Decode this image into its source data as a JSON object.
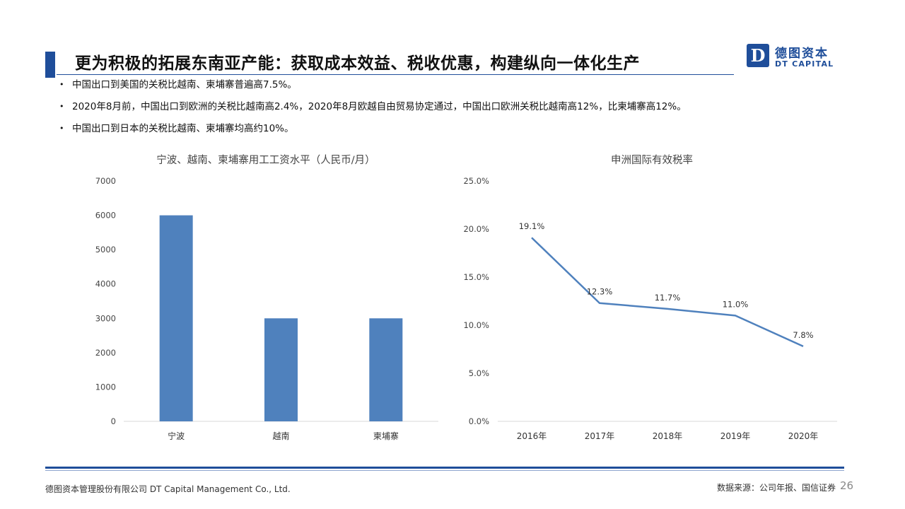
{
  "header": {
    "title": "更为积极的拓展东南亚产能：获取成本效益、税收优惠，构建纵向一体化生产",
    "logo": {
      "mark": "D",
      "name_cn": "德图资本",
      "name_en": "DT CAPITAL"
    }
  },
  "bullets": [
    "中国出口到美国的关税比越南、柬埔寨普遍高7.5%。",
    "2020年8月前，中国出口到欧洲的关税比越南高2.4%，2020年8月欧越自由贸易协定通过，中国出口欧洲关税比越南高12%，比柬埔寨高12%。",
    "中国出口到日本的关税比越南、柬埔寨均高约10%。"
  ],
  "chart_data": [
    {
      "type": "bar",
      "title": "宁波、越南、柬埔寨用工工资水平（人民币/月）",
      "categories": [
        "宁波",
        "越南",
        "柬埔寨"
      ],
      "values": [
        6000,
        3000,
        3000
      ],
      "ylim": [
        0,
        7000
      ],
      "yticks": [
        0,
        1000,
        2000,
        3000,
        4000,
        5000,
        6000,
        7000
      ],
      "ytick_labels": [
        "0",
        "1000",
        "2000",
        "3000",
        "4000",
        "5000",
        "6000",
        "7000"
      ],
      "color": "#4F81BD",
      "grid": false
    },
    {
      "type": "line",
      "title": "申洲国际有效税率",
      "categories": [
        "2016年",
        "2017年",
        "2018年",
        "2019年",
        "2020年"
      ],
      "values": [
        19.1,
        12.3,
        11.7,
        11.0,
        7.8
      ],
      "data_labels": [
        "19.1%",
        "12.3%",
        "11.7%",
        "11.0%",
        "7.8%"
      ],
      "ylim": [
        0,
        25
      ],
      "yticks": [
        0,
        5,
        10,
        15,
        20,
        25
      ],
      "ytick_labels": [
        "0.0%",
        "5.0%",
        "10.0%",
        "15.0%",
        "20.0%",
        "25.0%"
      ],
      "color": "#4F81BD",
      "grid": false
    }
  ],
  "footer": {
    "company": "德图资本管理股份有限公司  DT Capital Management  Co., Ltd.",
    "source": "数据来源：公司年报、国信证券",
    "page": "26"
  }
}
